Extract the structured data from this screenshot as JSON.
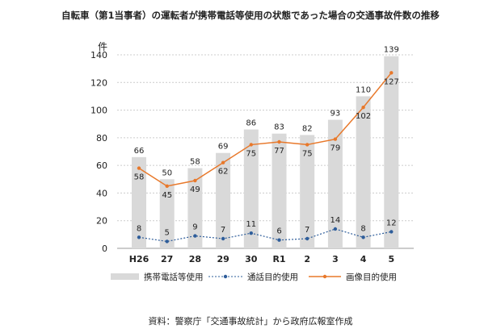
{
  "chart_data": {
    "type": "bar+line",
    "title": "自転車（第1当事者）の運転者が携帯電話等使用の状態であった場合の交通事故件数の推移",
    "ylabel": "件",
    "ylim": [
      0,
      140
    ],
    "yticks": [
      0,
      20,
      40,
      60,
      80,
      100,
      120,
      140
    ],
    "grid": true,
    "legend_position": "bottom",
    "categories": [
      "H26",
      "27",
      "28",
      "29",
      "30",
      "R1",
      "2",
      "3",
      "4",
      "5"
    ],
    "series": [
      {
        "name": "携帯電話等使用",
        "kind": "bar",
        "color": "#d9d9d9",
        "values": [
          66,
          50,
          58,
          69,
          86,
          83,
          82,
          93,
          110,
          139
        ]
      },
      {
        "name": "通話目的使用",
        "kind": "line-dotted",
        "color": "#2e5d9a",
        "values": [
          8,
          5,
          9,
          7,
          11,
          6,
          7,
          14,
          8,
          12
        ]
      },
      {
        "name": "画像目的使用",
        "kind": "line",
        "color": "#e8782a",
        "values": [
          58,
          45,
          49,
          62,
          75,
          77,
          75,
          79,
          102,
          127
        ]
      }
    ],
    "source": "資料：警察庁「交通事故統計」から政府広報室作成"
  }
}
